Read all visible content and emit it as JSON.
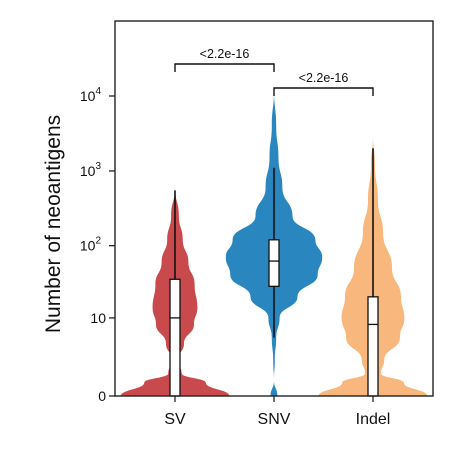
{
  "chart_data": {
    "type": "violin",
    "ylabel": "Number of neoantigens",
    "yscale": "log1p",
    "ylim": [
      0,
      100000
    ],
    "y_ticks": [
      {
        "value": 0,
        "base": "0",
        "exp": ""
      },
      {
        "value": 10,
        "base": "10",
        "exp": ""
      },
      {
        "value": 100,
        "base": "10",
        "exp": "2"
      },
      {
        "value": 1000,
        "base": "10",
        "exp": "3"
      },
      {
        "value": 10000,
        "base": "10",
        "exp": "4"
      }
    ],
    "categories": [
      "SV",
      "SNV",
      "Indel"
    ],
    "series": [
      {
        "category": "SV",
        "color": "#c94a4d",
        "violin_max": 600,
        "boxplot": {
          "min": 0,
          "q1": 0,
          "median": 10,
          "q3": 35,
          "max": 550
        },
        "density_shape": "wide base near 0, waist near 2, bulge near 10–30, tapering to ~600"
      },
      {
        "category": "SNV",
        "color": "#2a86bf",
        "violin_max": 12000,
        "boxplot": {
          "min": 5,
          "q1": 28,
          "median": 62,
          "q3": 120,
          "max": 1100
        },
        "density_shape": "widest near 50–100, thin tail down to 0, tail up to ~12000"
      },
      {
        "category": "Indel",
        "color": "#f8b77c",
        "violin_max": 3000,
        "boxplot": {
          "min": 0,
          "q1": 0,
          "median": 8,
          "q3": 20,
          "max": 2000
        },
        "density_shape": "wide base near 0, bulge near 5–30, tapering to ~3000"
      }
    ],
    "comparisons": [
      {
        "from": "SV",
        "to": "SNV",
        "label": "<2.2e-16"
      },
      {
        "from": "SNV",
        "to": "Indel",
        "label": "<2.2e-16"
      }
    ],
    "grid": false,
    "legend": "none"
  }
}
